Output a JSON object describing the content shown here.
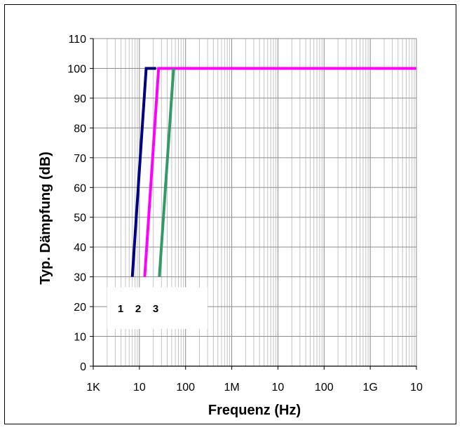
{
  "chart_data": {
    "type": "line",
    "title": "",
    "xlabel": "Frequenz (Hz)",
    "ylabel": "Typ. Dämpfung (dB)",
    "x_scale": "log",
    "x_range_hz": [
      1000,
      10000000000
    ],
    "x_tick_labels": [
      "1K",
      "10",
      "100",
      "1M",
      "10",
      "100",
      "1G",
      "10"
    ],
    "ylim": [
      0,
      110
    ],
    "y_ticks": [
      0,
      10,
      20,
      30,
      40,
      50,
      60,
      70,
      80,
      90,
      100,
      110
    ],
    "grid": true,
    "legend_labels": [
      "1",
      "2",
      "3"
    ],
    "legend_position": "bottom-left",
    "series": [
      {
        "name": "1",
        "color": "#000080",
        "points": [
          [
            7000,
            30
          ],
          [
            14000,
            100
          ],
          [
            23000,
            100
          ]
        ]
      },
      {
        "name": "2",
        "color": "#ff00ff",
        "points": [
          [
            13000,
            30
          ],
          [
            26000,
            100
          ],
          [
            10000000000,
            100
          ]
        ]
      },
      {
        "name": "3",
        "color": "#339966",
        "points": [
          [
            27000,
            30
          ],
          [
            55000,
            100
          ]
        ]
      }
    ]
  }
}
